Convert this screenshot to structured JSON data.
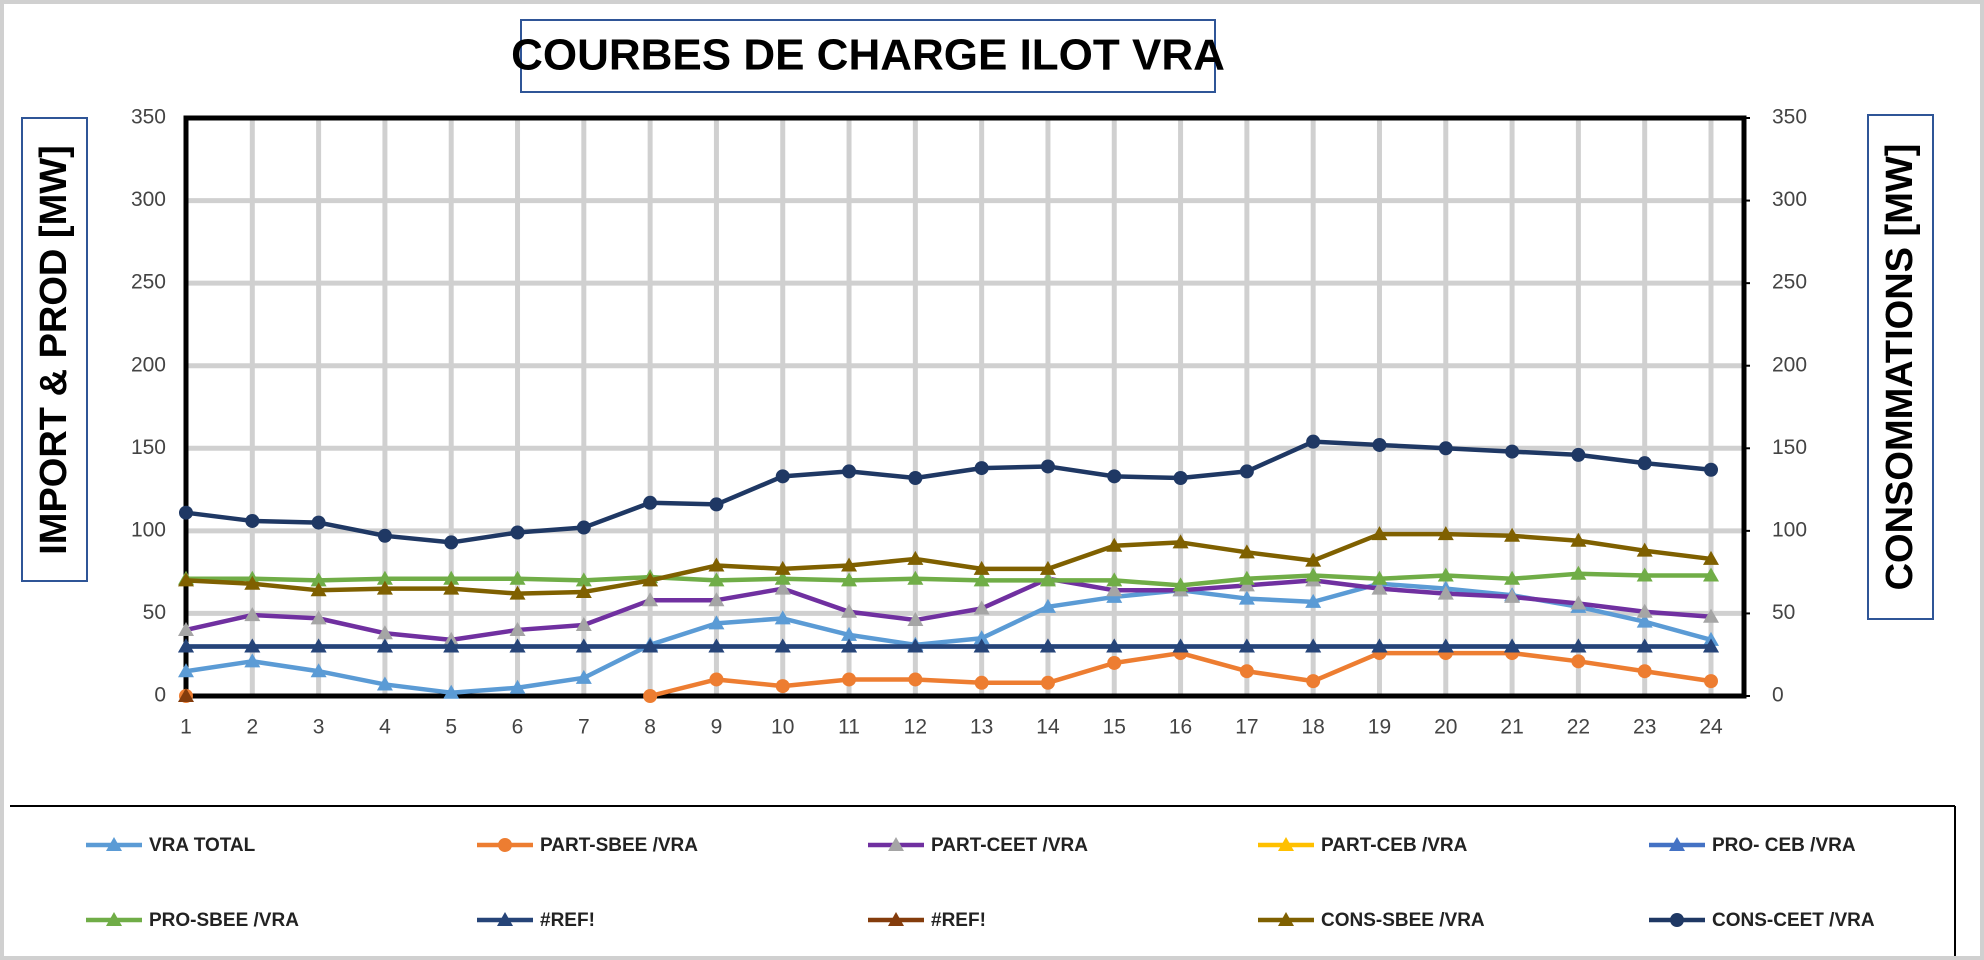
{
  "chart_data": {
    "type": "line",
    "title": "COURBES DE CHARGE ILOT VRA",
    "y_label": "IMPORT & PROD [MW]",
    "y2_label": "CONSOMMATIONS [MW]",
    "categories": [
      "1",
      "2",
      "3",
      "4",
      "5",
      "6",
      "7",
      "8",
      "9",
      "10",
      "11",
      "12",
      "13",
      "14",
      "15",
      "16",
      "17",
      "18",
      "19",
      "20",
      "21",
      "22",
      "23",
      "24"
    ],
    "ylim": [
      0,
      350
    ],
    "yticks": [
      0,
      50,
      100,
      150,
      200,
      250,
      300,
      350
    ],
    "y2lim": [
      0,
      350
    ],
    "y2ticks": [
      0,
      50,
      100,
      150,
      200,
      250,
      300,
      350
    ],
    "grid": true,
    "legend": "bottom",
    "series": [
      {
        "name": "VRA TOTAL",
        "color": "#5b9bd5",
        "marker": "triangle",
        "marker_color": "#5b9bd5",
        "values": [
          15,
          21,
          15,
          7,
          2,
          5,
          11,
          31,
          44,
          47,
          37,
          31,
          35,
          54,
          60,
          64,
          59,
          57,
          68,
          65,
          61,
          54,
          45,
          34
        ]
      },
      {
        "name": "PART-SBEE /VRA",
        "color": "#ed7d31",
        "marker": "circle",
        "marker_color": "#ed7d31",
        "values": [
          0,
          null,
          null,
          null,
          null,
          null,
          null,
          0,
          10,
          6,
          10,
          10,
          8,
          8,
          20,
          26,
          15,
          9,
          26,
          26,
          26,
          21,
          15,
          9
        ]
      },
      {
        "name": "PART-CEET /VRA",
        "color": "#7030a0",
        "marker": "triangle",
        "marker_color": "#a5a5a5",
        "values": [
          40,
          49,
          47,
          38,
          34,
          40,
          43,
          58,
          58,
          65,
          51,
          46,
          53,
          71,
          64,
          64,
          67,
          70,
          65,
          62,
          60,
          56,
          51,
          48
        ]
      },
      {
        "name": "PART-CEB /VRA",
        "color": "#ffc000",
        "marker": "triangle",
        "marker_color": "#ffc000",
        "values": [
          null,
          null,
          null,
          null,
          null,
          null,
          null,
          null,
          null,
          null,
          null,
          null,
          null,
          null,
          null,
          null,
          null,
          null,
          null,
          null,
          null,
          null,
          null,
          null
        ]
      },
      {
        "name": "PRO- CEB /VRA",
        "color": "#4472c4",
        "marker": "triangle",
        "marker_color": "#4472c4",
        "values": [
          30,
          30,
          30,
          30,
          30,
          30,
          30,
          30,
          30,
          30,
          30,
          30,
          30,
          30,
          30,
          30,
          30,
          30,
          30,
          30,
          30,
          30,
          30,
          30
        ]
      },
      {
        "name": "PRO-SBEE /VRA",
        "color": "#70ad47",
        "marker": "triangle",
        "marker_color": "#70ad47",
        "values": [
          71,
          71,
          70,
          71,
          71,
          71,
          70,
          72,
          70,
          71,
          70,
          71,
          70,
          70,
          70,
          67,
          71,
          73,
          71,
          73,
          71,
          74,
          73,
          73
        ]
      },
      {
        "name": "#REF!",
        "color": "#264478",
        "marker": "triangle",
        "marker_color": "#264478",
        "values": [
          30,
          30,
          30,
          30,
          30,
          30,
          30,
          30,
          30,
          30,
          30,
          30,
          30,
          30,
          30,
          30,
          30,
          30,
          30,
          30,
          30,
          30,
          30,
          30
        ]
      },
      {
        "name": "#REF!",
        "color": "#843c0c",
        "marker": "triangle",
        "marker_color": "#843c0c",
        "values": [
          0,
          null,
          null,
          null,
          null,
          null,
          null,
          null,
          null,
          null,
          null,
          null,
          null,
          null,
          null,
          null,
          null,
          null,
          null,
          null,
          null,
          null,
          null,
          null
        ]
      },
      {
        "name": "CONS-SBEE  /VRA",
        "color": "#7f6000",
        "marker": "triangle",
        "marker_color": "#7f6000",
        "axis": "y2",
        "values": [
          70,
          68,
          64,
          65,
          65,
          62,
          63,
          70,
          79,
          77,
          79,
          83,
          77,
          77,
          91,
          93,
          87,
          82,
          98,
          98,
          97,
          94,
          88,
          83
        ]
      },
      {
        "name": "CONS-CEET  /VRA",
        "color": "#1f3864",
        "marker": "circle",
        "marker_color": "#1f3864",
        "axis": "y2",
        "values": [
          111,
          106,
          105,
          97,
          93,
          99,
          102,
          117,
          116,
          133,
          136,
          132,
          138,
          139,
          133,
          132,
          136,
          154,
          152,
          150,
          148,
          146,
          141,
          137
        ]
      }
    ]
  }
}
